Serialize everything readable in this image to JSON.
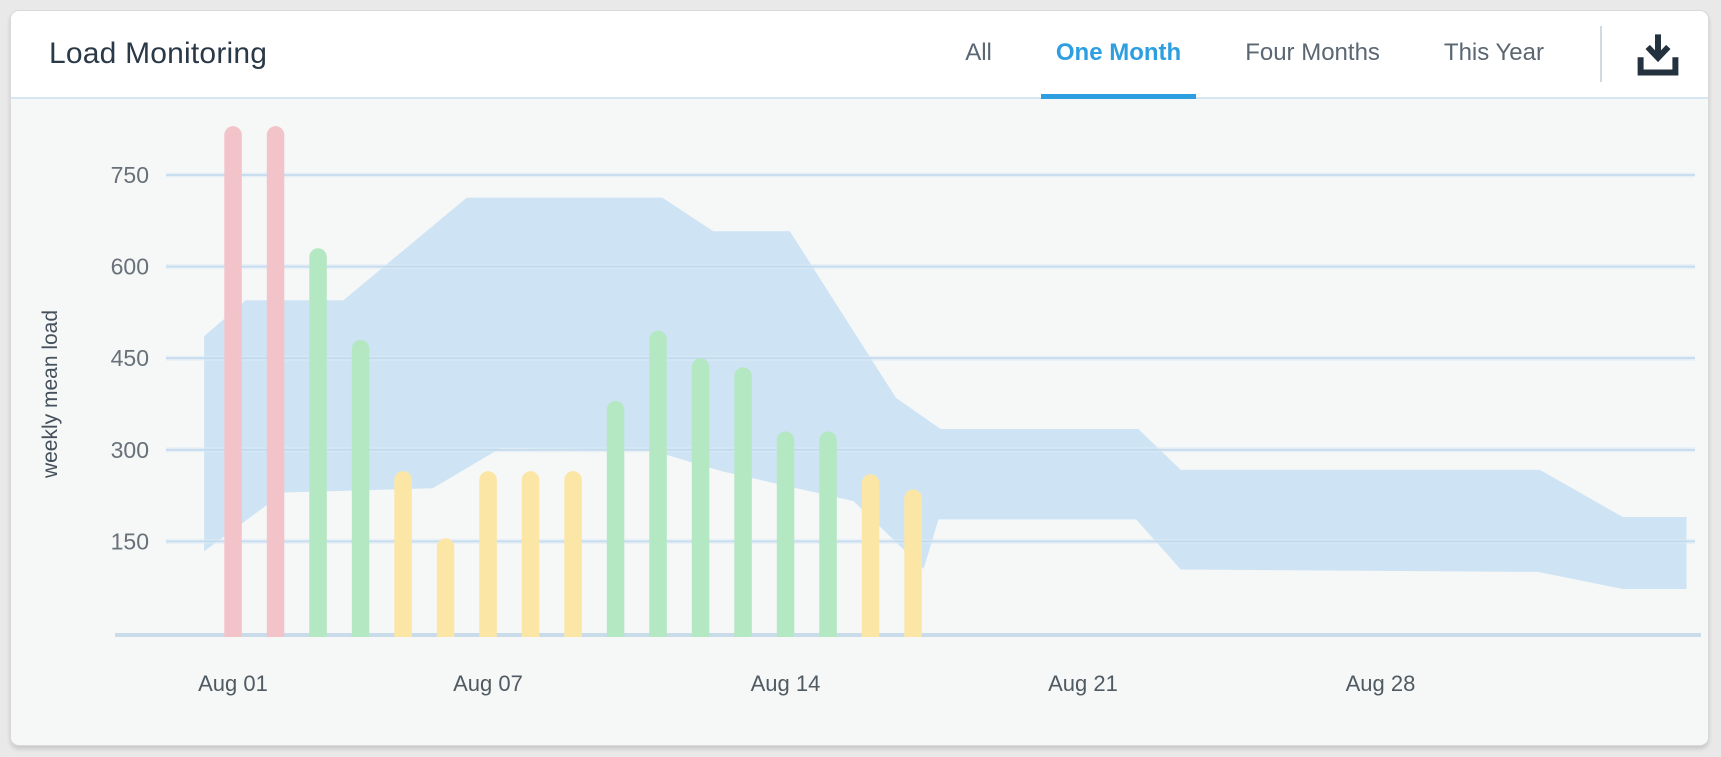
{
  "header": {
    "title": "Load Monitoring",
    "tabs": [
      {
        "label": "All",
        "active": false
      },
      {
        "label": "One Month",
        "active": true
      },
      {
        "label": "Four Months",
        "active": false
      },
      {
        "label": "This Year",
        "active": false
      }
    ]
  },
  "colors": {
    "accent_blue": "#2d9fe1",
    "band_blue": "#cee4f4",
    "bar_red": "#f2c4ca",
    "bar_green": "#b4e8c3",
    "bar_yellow": "#fbe6a5",
    "gridline_core": "#bcd6ec",
    "gridline_halo": "#dcebf6",
    "baseline": "#cadcea",
    "icon_dark": "#24313e",
    "chart_background": "#f6f7f7"
  },
  "chart_data": {
    "type": "bar",
    "title": "Load Monitoring",
    "ylabel": "weekly mean load",
    "y_ticks": [
      150,
      300,
      450,
      600,
      750
    ],
    "ylim": [
      0,
      870
    ],
    "grid": true,
    "x_tick_labels": [
      {
        "label": "Aug 01",
        "day": 1
      },
      {
        "label": "Aug 07",
        "day": 7
      },
      {
        "label": "Aug 14",
        "day": 14
      },
      {
        "label": "Aug 21",
        "day": 21
      },
      {
        "label": "Aug 28",
        "day": 28
      }
    ],
    "bars": [
      {
        "date": "Aug 01",
        "day": 1,
        "value": 830,
        "level": "red"
      },
      {
        "date": "Aug 02",
        "day": 2,
        "value": 830,
        "level": "red"
      },
      {
        "date": "Aug 03",
        "day": 3,
        "value": 630,
        "level": "green"
      },
      {
        "date": "Aug 04",
        "day": 4,
        "value": 480,
        "level": "green"
      },
      {
        "date": "Aug 05",
        "day": 5,
        "value": 265,
        "level": "yellow"
      },
      {
        "date": "Aug 06",
        "day": 6,
        "value": 155,
        "level": "yellow"
      },
      {
        "date": "Aug 07",
        "day": 7,
        "value": 265,
        "level": "yellow"
      },
      {
        "date": "Aug 08",
        "day": 8,
        "value": 265,
        "level": "yellow"
      },
      {
        "date": "Aug 09",
        "day": 9,
        "value": 265,
        "level": "yellow"
      },
      {
        "date": "Aug 10",
        "day": 10,
        "value": 380,
        "level": "green"
      },
      {
        "date": "Aug 11",
        "day": 11,
        "value": 495,
        "level": "green"
      },
      {
        "date": "Aug 12",
        "day": 12,
        "value": 450,
        "level": "green"
      },
      {
        "date": "Aug 13",
        "day": 13,
        "value": 435,
        "level": "green"
      },
      {
        "date": "Aug 14",
        "day": 14,
        "value": 330,
        "level": "green"
      },
      {
        "date": "Aug 15",
        "day": 15,
        "value": 330,
        "level": "green"
      },
      {
        "date": "Aug 16",
        "day": 16,
        "value": 260,
        "level": "yellow"
      },
      {
        "date": "Aug 17",
        "day": 17,
        "value": 235,
        "level": "yellow"
      }
    ],
    "band": {
      "description": "historical range band",
      "upper": [
        [
          0.32,
          486
        ],
        [
          1.3,
          545
        ],
        [
          3.6,
          545
        ],
        [
          6.5,
          713
        ],
        [
          11.1,
          713
        ],
        [
          12.3,
          658
        ],
        [
          14.1,
          658
        ],
        [
          16.6,
          385
        ],
        [
          17.65,
          334
        ],
        [
          22.3,
          334
        ],
        [
          23.3,
          267
        ],
        [
          31.75,
          267
        ],
        [
          33.7,
          190
        ],
        [
          35.2,
          190
        ]
      ],
      "lower": [
        [
          0.32,
          134
        ],
        [
          2.2,
          230
        ],
        [
          5.7,
          237
        ],
        [
          7.3,
          303
        ],
        [
          10.8,
          300
        ],
        [
          12.5,
          265
        ],
        [
          15.6,
          216
        ],
        [
          17.25,
          105
        ],
        [
          17.6,
          186
        ],
        [
          22.25,
          186
        ],
        [
          23.3,
          104
        ],
        [
          31.7,
          100
        ],
        [
          33.7,
          72
        ],
        [
          35.2,
          72
        ]
      ]
    }
  }
}
